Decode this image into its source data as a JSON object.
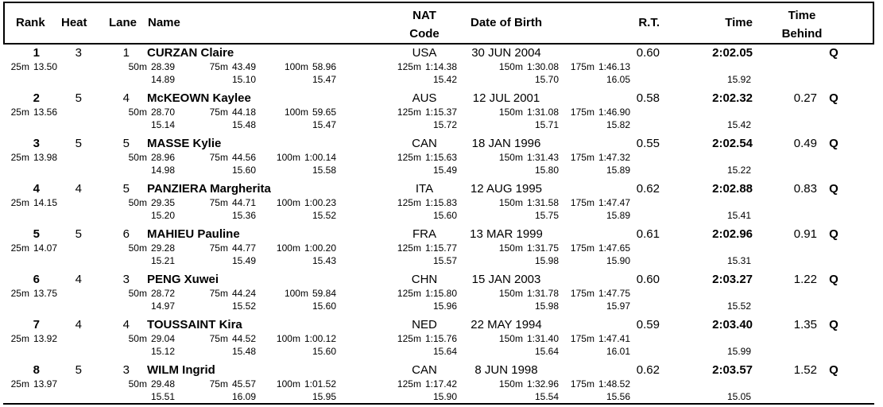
{
  "colors": {
    "text": "#000000",
    "background": "#ffffff",
    "border": "#000000"
  },
  "header": {
    "rank": "Rank",
    "heat": "Heat",
    "lane": "Lane",
    "name": "Name",
    "nat_line1": "NAT",
    "nat_line2": "Code",
    "dob": "Date of Birth",
    "rt": "R.T.",
    "time": "Time",
    "behind_line1": "Time",
    "behind_line2": "Behind"
  },
  "rows": [
    {
      "rank": "1",
      "heat": "3",
      "lane": "1",
      "name": "CURZAN Claire",
      "nat": "USA",
      "dob": "30 JUN 2004",
      "rt": "0.60",
      "time": "2:02.05",
      "behind": "",
      "q": "Q",
      "splits": [
        {
          "label": "25m",
          "value": "13.50",
          "delta": ""
        },
        {
          "label": "50m",
          "value": "28.39",
          "delta": "14.89"
        },
        {
          "label": "75m",
          "value": "43.49",
          "delta": "15.10"
        },
        {
          "label": "100m",
          "value": "58.96",
          "delta": "15.47"
        },
        {
          "label": "125m",
          "value": "1:14.38",
          "delta": "15.42"
        },
        {
          "label": "150m",
          "value": "1:30.08",
          "delta": "15.70"
        },
        {
          "label": "175m",
          "value": "1:46.13",
          "delta": "16.05"
        }
      ],
      "last_delta": "15.92"
    },
    {
      "rank": "2",
      "heat": "5",
      "lane": "4",
      "name": "McKEOWN Kaylee",
      "nat": "AUS",
      "dob": "12 JUL 2001",
      "rt": "0.58",
      "time": "2:02.32",
      "behind": "0.27",
      "q": "Q",
      "splits": [
        {
          "label": "25m",
          "value": "13.56",
          "delta": ""
        },
        {
          "label": "50m",
          "value": "28.70",
          "delta": "15.14"
        },
        {
          "label": "75m",
          "value": "44.18",
          "delta": "15.48"
        },
        {
          "label": "100m",
          "value": "59.65",
          "delta": "15.47"
        },
        {
          "label": "125m",
          "value": "1:15.37",
          "delta": "15.72"
        },
        {
          "label": "150m",
          "value": "1:31.08",
          "delta": "15.71"
        },
        {
          "label": "175m",
          "value": "1:46.90",
          "delta": "15.82"
        }
      ],
      "last_delta": "15.42"
    },
    {
      "rank": "3",
      "heat": "5",
      "lane": "5",
      "name": "MASSE Kylie",
      "nat": "CAN",
      "dob": "18 JAN 1996",
      "rt": "0.55",
      "time": "2:02.54",
      "behind": "0.49",
      "q": "Q",
      "splits": [
        {
          "label": "25m",
          "value": "13.98",
          "delta": ""
        },
        {
          "label": "50m",
          "value": "28.96",
          "delta": "14.98"
        },
        {
          "label": "75m",
          "value": "44.56",
          "delta": "15.60"
        },
        {
          "label": "100m",
          "value": "1:00.14",
          "delta": "15.58"
        },
        {
          "label": "125m",
          "value": "1:15.63",
          "delta": "15.49"
        },
        {
          "label": "150m",
          "value": "1:31.43",
          "delta": "15.80"
        },
        {
          "label": "175m",
          "value": "1:47.32",
          "delta": "15.89"
        }
      ],
      "last_delta": "15.22"
    },
    {
      "rank": "4",
      "heat": "4",
      "lane": "5",
      "name": "PANZIERA Margherita",
      "nat": "ITA",
      "dob": "12 AUG 1995",
      "rt": "0.62",
      "time": "2:02.88",
      "behind": "0.83",
      "q": "Q",
      "splits": [
        {
          "label": "25m",
          "value": "14.15",
          "delta": ""
        },
        {
          "label": "50m",
          "value": "29.35",
          "delta": "15.20"
        },
        {
          "label": "75m",
          "value": "44.71",
          "delta": "15.36"
        },
        {
          "label": "100m",
          "value": "1:00.23",
          "delta": "15.52"
        },
        {
          "label": "125m",
          "value": "1:15.83",
          "delta": "15.60"
        },
        {
          "label": "150m",
          "value": "1:31.58",
          "delta": "15.75"
        },
        {
          "label": "175m",
          "value": "1:47.47",
          "delta": "15.89"
        }
      ],
      "last_delta": "15.41"
    },
    {
      "rank": "5",
      "heat": "5",
      "lane": "6",
      "name": "MAHIEU Pauline",
      "nat": "FRA",
      "dob": "13 MAR 1999",
      "rt": "0.61",
      "time": "2:02.96",
      "behind": "0.91",
      "q": "Q",
      "splits": [
        {
          "label": "25m",
          "value": "14.07",
          "delta": ""
        },
        {
          "label": "50m",
          "value": "29.28",
          "delta": "15.21"
        },
        {
          "label": "75m",
          "value": "44.77",
          "delta": "15.49"
        },
        {
          "label": "100m",
          "value": "1:00.20",
          "delta": "15.43"
        },
        {
          "label": "125m",
          "value": "1:15.77",
          "delta": "15.57"
        },
        {
          "label": "150m",
          "value": "1:31.75",
          "delta": "15.98"
        },
        {
          "label": "175m",
          "value": "1:47.65",
          "delta": "15.90"
        }
      ],
      "last_delta": "15.31"
    },
    {
      "rank": "6",
      "heat": "4",
      "lane": "3",
      "name": "PENG Xuwei",
      "nat": "CHN",
      "dob": "15 JAN 2003",
      "rt": "0.60",
      "time": "2:03.27",
      "behind": "1.22",
      "q": "Q",
      "splits": [
        {
          "label": "25m",
          "value": "13.75",
          "delta": ""
        },
        {
          "label": "50m",
          "value": "28.72",
          "delta": "14.97"
        },
        {
          "label": "75m",
          "value": "44.24",
          "delta": "15.52"
        },
        {
          "label": "100m",
          "value": "59.84",
          "delta": "15.60"
        },
        {
          "label": "125m",
          "value": "1:15.80",
          "delta": "15.96"
        },
        {
          "label": "150m",
          "value": "1:31.78",
          "delta": "15.98"
        },
        {
          "label": "175m",
          "value": "1:47.75",
          "delta": "15.97"
        }
      ],
      "last_delta": "15.52"
    },
    {
      "rank": "7",
      "heat": "4",
      "lane": "4",
      "name": "TOUSSAINT Kira",
      "nat": "NED",
      "dob": "22 MAY 1994",
      "rt": "0.59",
      "time": "2:03.40",
      "behind": "1.35",
      "q": "Q",
      "splits": [
        {
          "label": "25m",
          "value": "13.92",
          "delta": ""
        },
        {
          "label": "50m",
          "value": "29.04",
          "delta": "15.12"
        },
        {
          "label": "75m",
          "value": "44.52",
          "delta": "15.48"
        },
        {
          "label": "100m",
          "value": "1:00.12",
          "delta": "15.60"
        },
        {
          "label": "125m",
          "value": "1:15.76",
          "delta": "15.64"
        },
        {
          "label": "150m",
          "value": "1:31.40",
          "delta": "15.64"
        },
        {
          "label": "175m",
          "value": "1:47.41",
          "delta": "16.01"
        }
      ],
      "last_delta": "15.99"
    },
    {
      "rank": "8",
      "heat": "5",
      "lane": "3",
      "name": "WILM Ingrid",
      "nat": "CAN",
      "dob": "8 JUN 1998",
      "rt": "0.62",
      "time": "2:03.57",
      "behind": "1.52",
      "q": "Q",
      "splits": [
        {
          "label": "25m",
          "value": "13.97",
          "delta": ""
        },
        {
          "label": "50m",
          "value": "29.48",
          "delta": "15.51"
        },
        {
          "label": "75m",
          "value": "45.57",
          "delta": "16.09"
        },
        {
          "label": "100m",
          "value": "1:01.52",
          "delta": "15.95"
        },
        {
          "label": "125m",
          "value": "1:17.42",
          "delta": "15.90"
        },
        {
          "label": "150m",
          "value": "1:32.96",
          "delta": "15.54"
        },
        {
          "label": "175m",
          "value": "1:48.52",
          "delta": "15.56"
        }
      ],
      "last_delta": "15.05"
    }
  ]
}
